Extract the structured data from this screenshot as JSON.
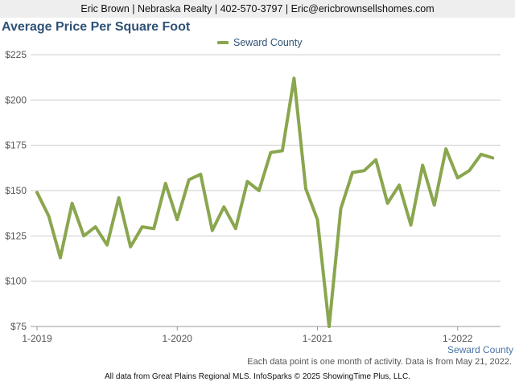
{
  "header": {
    "contact_line": "Eric Brown | Nebraska Realty | 402-570-3797 | Eric@ericbrownsellshomes.com"
  },
  "footer": {
    "note": "Each data point is one month of activity. Data is from May 21, 2022.",
    "credit": "All data from Great Plains Regional MLS. InfoSparks © 2025 ShowingTime Plus, LLC."
  },
  "chart_data": {
    "type": "line",
    "title": "Average Price Per Square Foot",
    "xlabel": "",
    "ylabel": "",
    "ylim": [
      75,
      225
    ],
    "y_ticks": [
      75,
      100,
      125,
      150,
      175,
      200,
      225
    ],
    "y_tick_labels": [
      "$75",
      "$100",
      "$125",
      "$150",
      "$175",
      "$200",
      "$225"
    ],
    "x_tick_labels": [
      "1-2019",
      "1-2020",
      "1-2021",
      "1-2022"
    ],
    "x": [
      "2019-01",
      "2019-02",
      "2019-03",
      "2019-04",
      "2019-05",
      "2019-06",
      "2019-07",
      "2019-08",
      "2019-09",
      "2019-10",
      "2019-11",
      "2019-12",
      "2020-01",
      "2020-02",
      "2020-03",
      "2020-04",
      "2020-05",
      "2020-06",
      "2020-07",
      "2020-08",
      "2020-09",
      "2020-10",
      "2020-11",
      "2020-12",
      "2021-01",
      "2021-02",
      "2021-03",
      "2021-04",
      "2021-05",
      "2021-06",
      "2021-07",
      "2021-08",
      "2021-09",
      "2021-10",
      "2021-11",
      "2021-12",
      "2022-01",
      "2022-02",
      "2022-03",
      "2022-04",
      "2022-05"
    ],
    "grid": true,
    "legend_position": "top-center",
    "series": [
      {
        "name": "Seward County",
        "color": "#8aa64e",
        "values": [
          149,
          136,
          113,
          143,
          125,
          130,
          120,
          146,
          119,
          130,
          129,
          154,
          134,
          156,
          159,
          128,
          141,
          129,
          155,
          150,
          171,
          172,
          212,
          151,
          134,
          75,
          140,
          160,
          161,
          167,
          143,
          153,
          131,
          164,
          142,
          173,
          157,
          161,
          170,
          168,
          null
        ]
      }
    ]
  }
}
